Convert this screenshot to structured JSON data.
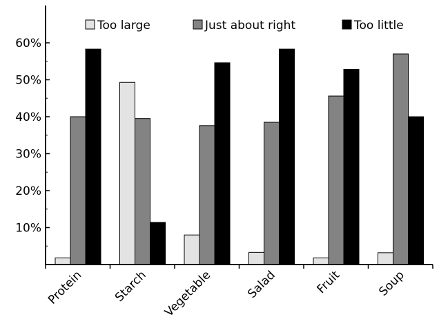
{
  "chart_data": {
    "type": "bar",
    "categories": [
      "Protein",
      "Starch",
      "Vegetable",
      "Salad",
      "Fruit",
      "Soup"
    ],
    "series": [
      {
        "name": "Too large",
        "color": "#e3e3e3",
        "values": [
          1.8,
          49.3,
          8.0,
          3.3,
          1.8,
          3.2
        ]
      },
      {
        "name": "Just about right",
        "color": "#838383",
        "values": [
          40.0,
          39.5,
          37.6,
          38.5,
          45.6,
          57.0
        ]
      },
      {
        "name": "Too little",
        "color": "#000000",
        "values": [
          58.3,
          11.4,
          54.6,
          58.3,
          52.8,
          40.0
        ]
      }
    ],
    "y_ticks": [
      "10%",
      "20%",
      "30%",
      "40%",
      "50%",
      "60%"
    ],
    "ylim": [
      0,
      60
    ],
    "legend_position": "top",
    "grid": false
  }
}
